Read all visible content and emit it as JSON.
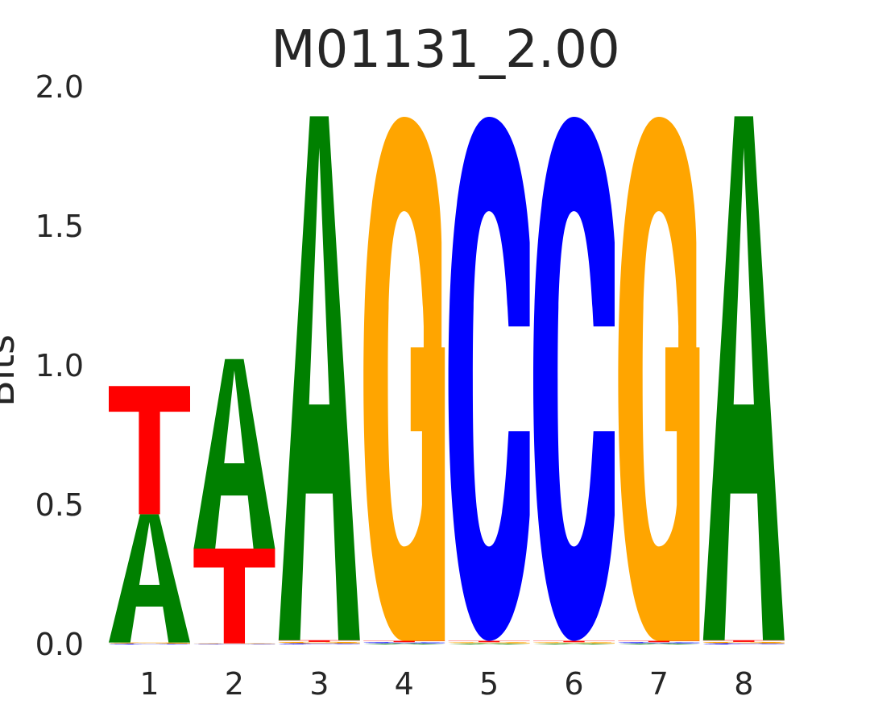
{
  "chart_data": {
    "type": "sequence-logo",
    "title": "M01131_2.00",
    "ylabel": "Bits",
    "xlabel": "",
    "ylim": [
      0,
      2.0
    ],
    "yticks": [
      "0.0",
      "0.5",
      "1.0",
      "1.5",
      "2.0"
    ],
    "grid": false,
    "positions": [
      "1",
      "2",
      "3",
      "4",
      "5",
      "6",
      "7",
      "8"
    ],
    "colors": {
      "A": "#008000",
      "C": "#0000ff",
      "G": "#ffa500",
      "T": "#ff0000"
    },
    "stacks": [
      [
        {
          "letter": "C",
          "bits": 0.003
        },
        {
          "letter": "G",
          "bits": 0.004
        },
        {
          "letter": "A",
          "bits": 0.46
        },
        {
          "letter": "T",
          "bits": 0.46
        }
      ],
      [
        {
          "letter": "C",
          "bits": 0.002
        },
        {
          "letter": "G",
          "bits": 0.002
        },
        {
          "letter": "T",
          "bits": 0.34
        },
        {
          "letter": "A",
          "bits": 0.68
        }
      ],
      [
        {
          "letter": "C",
          "bits": 0.004
        },
        {
          "letter": "G",
          "bits": 0.005
        },
        {
          "letter": "T",
          "bits": 0.006
        },
        {
          "letter": "A",
          "bits": 1.88
        }
      ],
      [
        {
          "letter": "A",
          "bits": 0.004
        },
        {
          "letter": "C",
          "bits": 0.004
        },
        {
          "letter": "T",
          "bits": 0.005
        },
        {
          "letter": "G",
          "bits": 1.88
        }
      ],
      [
        {
          "letter": "A",
          "bits": 0.004
        },
        {
          "letter": "G",
          "bits": 0.004
        },
        {
          "letter": "T",
          "bits": 0.005
        },
        {
          "letter": "C",
          "bits": 1.88
        }
      ],
      [
        {
          "letter": "A",
          "bits": 0.004
        },
        {
          "letter": "G",
          "bits": 0.004
        },
        {
          "letter": "T",
          "bits": 0.005
        },
        {
          "letter": "C",
          "bits": 1.88
        }
      ],
      [
        {
          "letter": "A",
          "bits": 0.004
        },
        {
          "letter": "C",
          "bits": 0.004
        },
        {
          "letter": "T",
          "bits": 0.005
        },
        {
          "letter": "G",
          "bits": 1.88
        }
      ],
      [
        {
          "letter": "C",
          "bits": 0.004
        },
        {
          "letter": "G",
          "bits": 0.005
        },
        {
          "letter": "T",
          "bits": 0.006
        },
        {
          "letter": "A",
          "bits": 1.88
        }
      ]
    ]
  }
}
